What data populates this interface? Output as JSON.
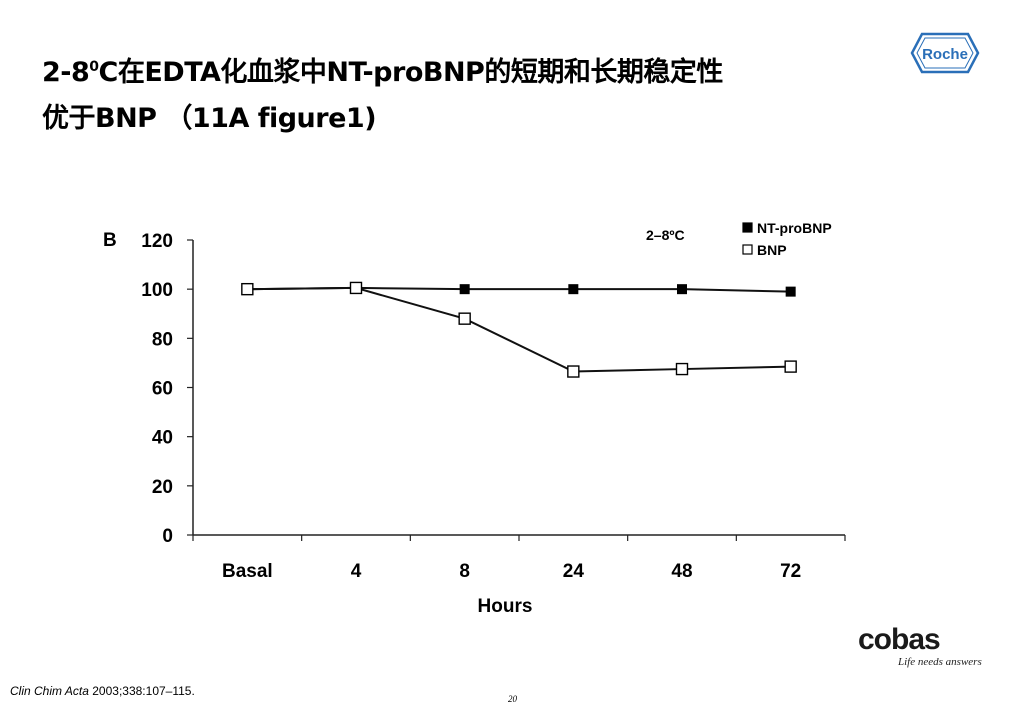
{
  "slide": {
    "title_part1": "2-8",
    "title_sup": "0",
    "title_part2": "C在EDTA化血浆中NT-proBNP的短期和长期稳定性",
    "title_line2": "优于BNP （11A figure1)",
    "citation_journal": "Clin Chim Acta",
    "citation_rest": " 2003;338:107–115.",
    "page_number": "20"
  },
  "logos": {
    "roche": "Roche",
    "cobas": "cobas",
    "cobas_tagline": "Life needs answers"
  },
  "chart_data": {
    "type": "line",
    "panel_label": "B",
    "condition_label": "2–8ºC",
    "xlabel": "Hours",
    "ylabel": "",
    "categories": [
      "Basal",
      "4",
      "8",
      "24",
      "48",
      "72"
    ],
    "ylim": [
      0,
      120
    ],
    "yticks": [
      0,
      20,
      40,
      60,
      80,
      100,
      120
    ],
    "grid": false,
    "legend_position": "top-right",
    "series": [
      {
        "name": "NT-proBNP",
        "marker": "filled-square",
        "values": [
          100,
          100.5,
          100,
          100,
          100,
          99
        ]
      },
      {
        "name": "BNP",
        "marker": "open-square",
        "values": [
          100,
          100.5,
          88,
          66.5,
          67.5,
          68.5
        ]
      }
    ]
  }
}
